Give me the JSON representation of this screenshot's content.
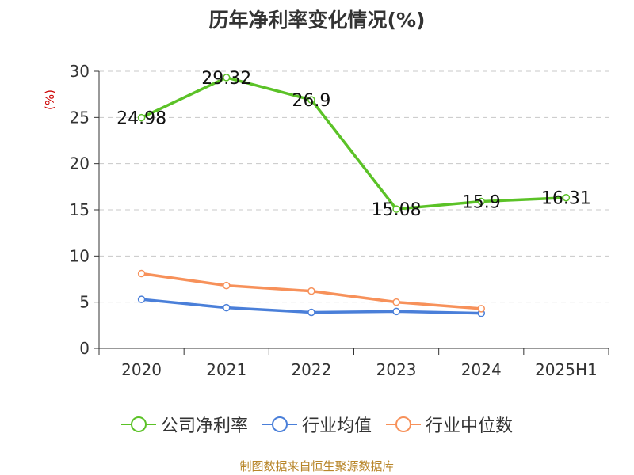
{
  "chart_data": {
    "type": "line",
    "title": "历年净利率变化情况(%)",
    "ylabel": "(%)",
    "categories": [
      "2020",
      "2021",
      "2022",
      "2023",
      "2024",
      "2025H1"
    ],
    "ylim": [
      0,
      30
    ],
    "yticks": [
      0,
      5,
      10,
      15,
      20,
      25,
      30
    ],
    "grid": true,
    "legend_position": "bottom",
    "series": [
      {
        "name": "公司净利率",
        "color": "#5bc227",
        "labels": true,
        "values": [
          24.98,
          29.32,
          26.9,
          15.08,
          15.9,
          16.31
        ]
      },
      {
        "name": "行业均值",
        "color": "#4a7fd9",
        "labels": false,
        "values": [
          5.3,
          4.4,
          3.9,
          4.0,
          3.8,
          null
        ]
      },
      {
        "name": "行业中位数",
        "color": "#f7915a",
        "labels": false,
        "values": [
          8.1,
          6.8,
          6.2,
          5.0,
          4.3,
          null
        ]
      }
    ]
  },
  "source_text": "制图数据来自恒生聚源数据库"
}
